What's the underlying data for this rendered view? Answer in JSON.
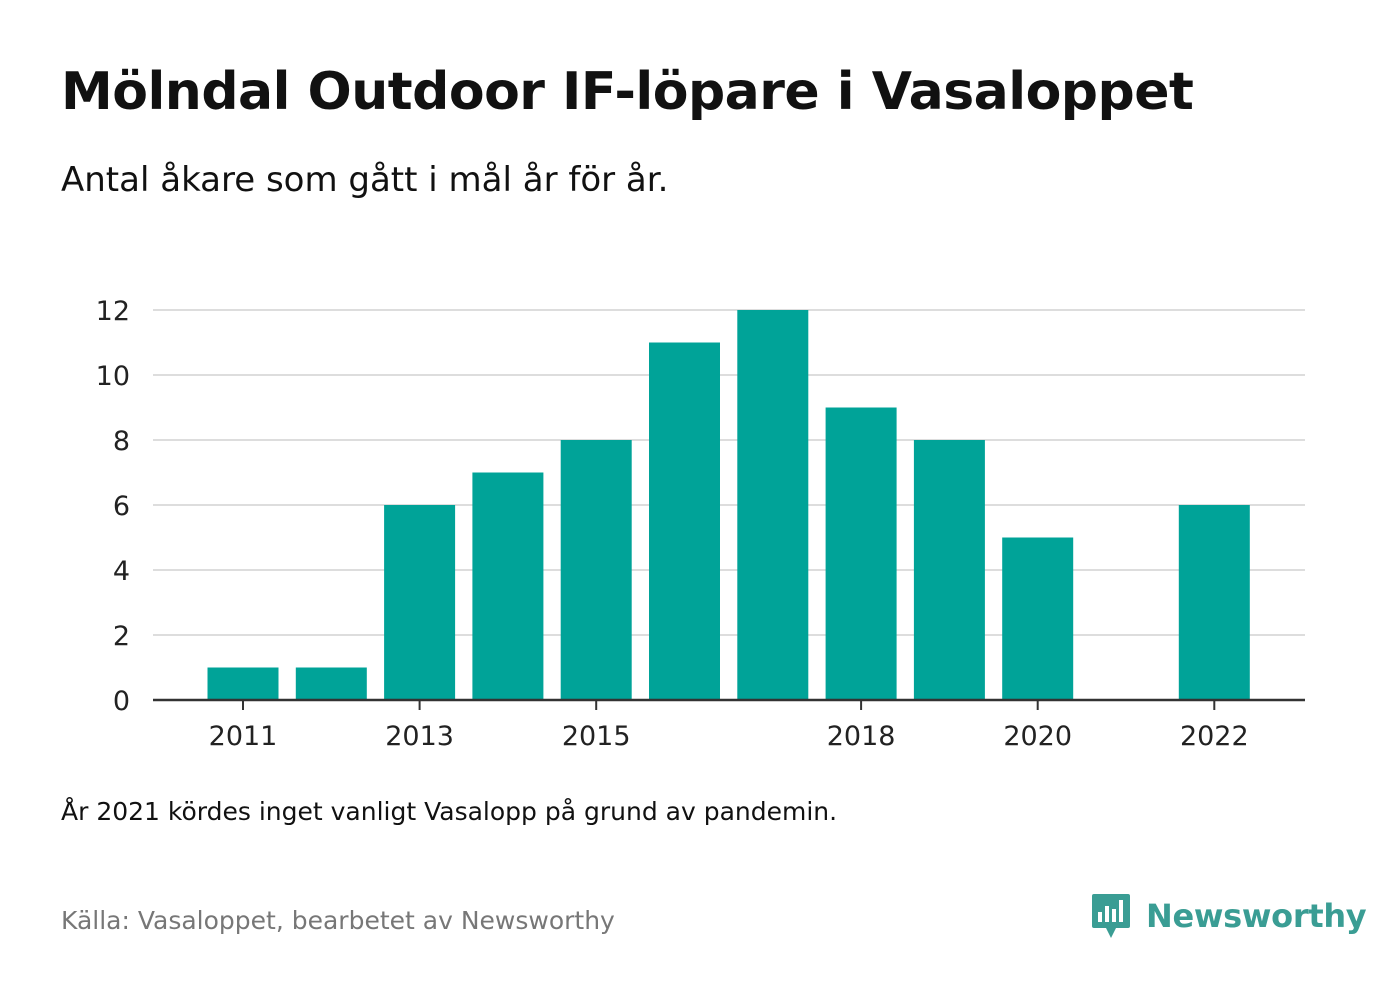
{
  "title": "Mölndal Outdoor IF-löpare i Vasaloppet",
  "subtitle": "Antal åkare som gått i mål år för år.",
  "note": "År 2021 kördes inget vanligt Vasalopp på grund av pandemin.",
  "source": "Källa: Vasaloppet, bearbetet av Newsworthy",
  "brand": {
    "name": "Newsworthy",
    "icon": "newsworthy-logo-icon",
    "color": "#3a9d94"
  },
  "colors": {
    "bar": "#00a398",
    "grid": "#dddddd",
    "axis": "#333333",
    "text": "#111111",
    "source": "#777777"
  },
  "chart_data": {
    "type": "bar",
    "title": "Mölndal Outdoor IF-löpare i Vasaloppet",
    "subtitle": "Antal åkare som gått i mål år för år.",
    "xlabel": "",
    "ylabel": "",
    "x": [
      2011,
      2012,
      2013,
      2014,
      2015,
      2016,
      2017,
      2018,
      2019,
      2020,
      2021,
      2022
    ],
    "values": [
      1,
      1,
      6,
      7,
      8,
      11,
      12,
      9,
      8,
      5,
      null,
      6
    ],
    "x_tick_labels": [
      "2011",
      "2013",
      "2015",
      "2018",
      "2020",
      "2022"
    ],
    "x_tick_values": [
      2011,
      2013,
      2015,
      2018,
      2020,
      2022
    ],
    "y_ticks": [
      0,
      2,
      4,
      6,
      8,
      10,
      12
    ],
    "ylim": [
      0,
      12
    ],
    "grid": true,
    "legend": false
  }
}
